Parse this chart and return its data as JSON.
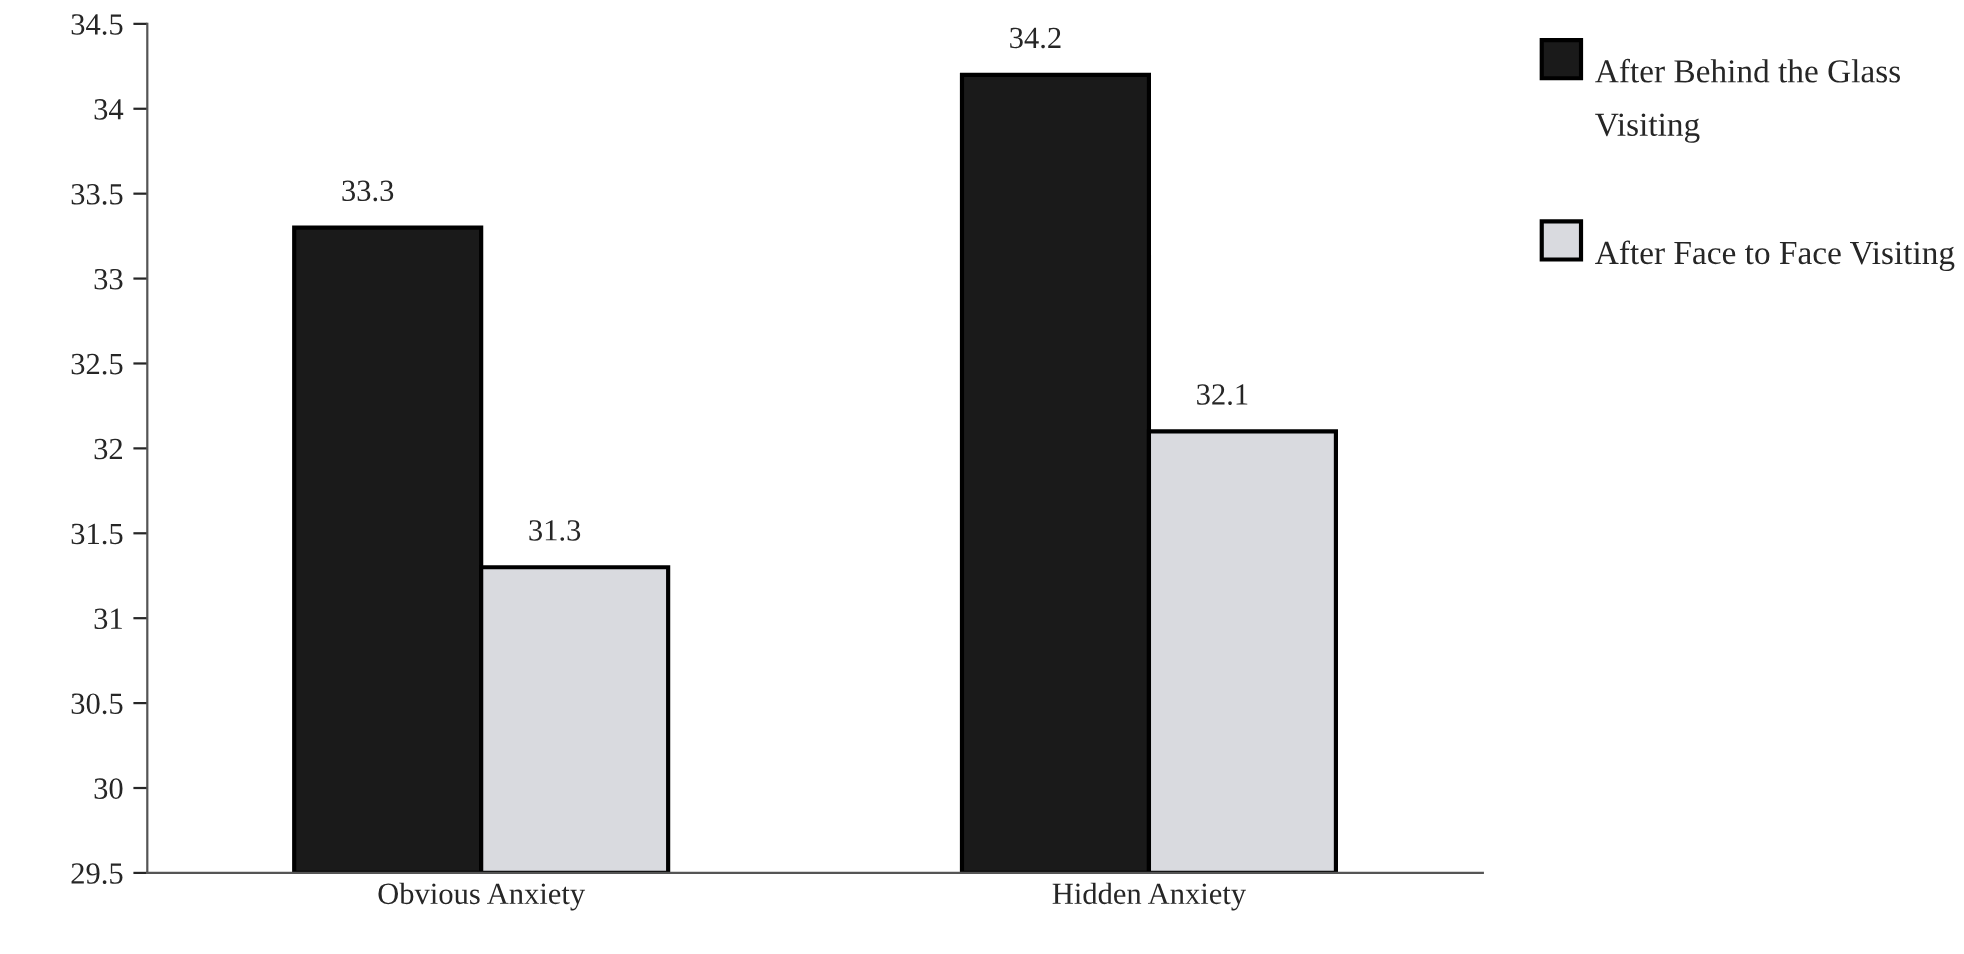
{
  "chart_data": {
    "type": "bar",
    "categories": [
      "Obvious Anxiety",
      "Hidden Anxiety"
    ],
    "series": [
      {
        "name": "After Behind the Glass Visiting",
        "color": "#1a1a1a",
        "values": [
          33.3,
          34.2
        ]
      },
      {
        "name": "After Face to Face Visiting",
        "color": "#d9dadf",
        "values": [
          31.3,
          32.1
        ]
      }
    ],
    "ylim": [
      29.5,
      34.5
    ],
    "yticks": [
      29.5,
      30,
      30.5,
      31,
      31.5,
      32,
      32.5,
      33,
      33.5,
      34,
      34.5
    ],
    "data_labels": true,
    "grid": false,
    "legend": "right"
  }
}
